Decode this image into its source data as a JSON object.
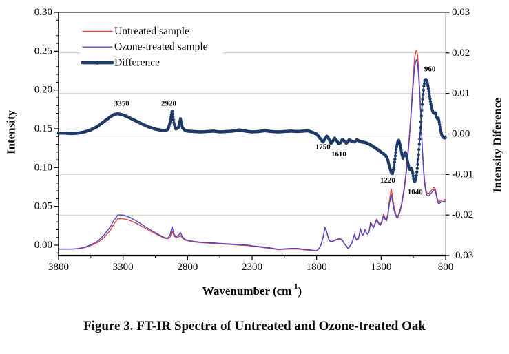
{
  "figure": {
    "caption": "Figure 3. FT-IR Spectra of Untreated and Ozone-treated Oak"
  },
  "colors": {
    "untreated": "#e04040",
    "ozone_treated": "#4a47cc",
    "difference": "#1f3a68",
    "gridline": "#c9c9c9",
    "axis": "#000000",
    "right_axis_line": "#999999"
  },
  "chart_data": {
    "type": "line",
    "title": "",
    "grid": "horizontal light-gray lines at right-axis major ticks",
    "x_axis": {
      "label": "Wavenumber (cm⁻¹)",
      "label_parts": {
        "pre": "Wavenumber (cm",
        "sup": "-1",
        "post": ")"
      },
      "tick_labels": [
        "3800",
        "3300",
        "2800",
        "2300",
        "1800",
        "1300",
        "800"
      ],
      "tick_values": [
        3800,
        3300,
        2800,
        2300,
        1800,
        1300,
        800
      ],
      "minor_tick_interval": 250,
      "range": [
        3800,
        800
      ],
      "reversed": true
    },
    "y_left": {
      "label": "Intensity",
      "tick_labels": [
        "0.30",
        "0.25",
        "0.20",
        "0.15",
        "0.10",
        "0.05",
        "0.00"
      ],
      "tick_values": [
        0.3,
        0.25,
        0.2,
        0.15,
        0.1,
        0.05,
        0.0
      ],
      "minor_tick_interval": 0.01,
      "range": [
        0.3,
        -0.013
      ]
    },
    "y_right": {
      "label": "Intensity Diference",
      "tick_labels": [
        "0.03",
        "0.02",
        "0.01",
        "0.00",
        "-0.01",
        "-0.02",
        "-0.03"
      ],
      "tick_values": [
        0.03,
        0.02,
        0.01,
        0.0,
        -0.01,
        -0.02,
        -0.03
      ],
      "range": [
        0.03,
        -0.03
      ],
      "gridline_values": [
        0.02,
        0.01,
        0.0,
        -0.01,
        -0.02
      ]
    },
    "legend": {
      "position": "top-left-inside",
      "items": [
        {
          "label": "Untreated sample",
          "color": "#e04040",
          "line_width": 1.4,
          "marker": false
        },
        {
          "label": "Ozone-treated sample",
          "color": "#4a47cc",
          "line_width": 1.4,
          "marker": false
        },
        {
          "label": "Difference",
          "color": "#1f3a68",
          "line_width": 5,
          "marker": true
        }
      ]
    },
    "annotations": [
      {
        "text": "3350",
        "x": 3310,
        "y": 0.0075,
        "y_axis": "right"
      },
      {
        "text": "2920",
        "x": 2946,
        "y": 0.0075,
        "y_axis": "right"
      },
      {
        "text": "1750",
        "x": 1751,
        "y": -0.0032,
        "y_axis": "right"
      },
      {
        "text": "1610",
        "x": 1628,
        "y": -0.005,
        "y_axis": "right"
      },
      {
        "text": "1220",
        "x": 1249,
        "y": -0.0115,
        "y_axis": "right"
      },
      {
        "text": "1040",
        "x": 1036,
        "y": -0.0144,
        "y_axis": "right"
      },
      {
        "text": "960",
        "x": 922,
        "y": 0.016,
        "y_axis": "right"
      }
    ],
    "x": [
      3800,
      3750,
      3700,
      3650,
      3600,
      3550,
      3500,
      3450,
      3400,
      3370,
      3340,
      3300,
      3250,
      3200,
      3150,
      3100,
      3050,
      3000,
      2970,
      2950,
      2935,
      2920,
      2905,
      2890,
      2870,
      2855,
      2840,
      2820,
      2800,
      2750,
      2700,
      2650,
      2600,
      2550,
      2500,
      2450,
      2400,
      2350,
      2300,
      2250,
      2200,
      2150,
      2100,
      2050,
      2000,
      1950,
      1900,
      1870,
      1840,
      1820,
      1800,
      1780,
      1765,
      1750,
      1735,
      1720,
      1705,
      1690,
      1675,
      1660,
      1645,
      1630,
      1615,
      1600,
      1585,
      1570,
      1558,
      1548,
      1538,
      1528,
      1515,
      1506,
      1497,
      1488,
      1478,
      1468,
      1461,
      1452,
      1443,
      1434,
      1425,
      1414,
      1404,
      1393,
      1382,
      1371,
      1359,
      1346,
      1334,
      1321,
      1308,
      1295,
      1281,
      1269,
      1259,
      1248,
      1236,
      1222,
      1212,
      1203,
      1192,
      1182,
      1172,
      1163,
      1152,
      1142,
      1132,
      1122,
      1112,
      1102,
      1092,
      1082,
      1072,
      1064,
      1056,
      1048,
      1040,
      1032,
      1026,
      1018,
      1010,
      1000,
      990,
      980,
      970,
      962,
      953,
      945,
      935,
      925,
      915,
      905,
      895,
      888,
      880,
      872,
      864,
      856,
      848,
      840,
      830,
      820,
      810,
      800
    ],
    "series": [
      {
        "name": "Untreated sample",
        "axis": "left",
        "color": "#e04040",
        "width": 1.4,
        "y": [
          -0.0051,
          -0.0051,
          -0.0051,
          -0.0046,
          -0.0033,
          -0.0005,
          0.0031,
          0.0095,
          0.0189,
          0.0276,
          0.034,
          0.0342,
          0.032,
          0.0284,
          0.0238,
          0.0192,
          0.0149,
          0.0106,
          0.0086,
          0.0084,
          0.0105,
          0.0181,
          0.0118,
          0.0099,
          0.0107,
          0.0126,
          0.0093,
          0.0066,
          0.0057,
          0.0042,
          0.0033,
          0.0027,
          0.0022,
          0.0018,
          0.0012,
          0.0007,
          0,
          -0.0004,
          -0.0013,
          -0.0023,
          -0.0034,
          -0.0043,
          -0.0058,
          -0.0053,
          -0.0049,
          -0.0048,
          -0.0059,
          -0.0064,
          -0.0068,
          -0.0071,
          -0.0068,
          -0.0038,
          0.0013,
          0.0103,
          0.0234,
          0.0163,
          0.0072,
          0.0047,
          0.0052,
          0.0068,
          0.0073,
          0.0083,
          0.0083,
          0.0063,
          0.0022,
          -0.0008,
          -0.0038,
          -0.0028,
          0.0002,
          0.0023,
          0.0093,
          0.0144,
          0.0093,
          0.0068,
          0.0083,
          0.0144,
          0.0215,
          0.0164,
          0.0134,
          0.0154,
          0.0205,
          0.0164,
          0.0144,
          0.0185,
          0.0296,
          0.0265,
          0.0235,
          0.0286,
          0.0337,
          0.0296,
          0.0266,
          0.0308,
          0.04,
          0.0349,
          0.0329,
          0.0403,
          0.057,
          0.0725,
          0.063,
          0.0525,
          0.0435,
          0.038,
          0.037,
          0.041,
          0.0463,
          0.0533,
          0.0635,
          0.0735,
          0.087,
          0.102,
          0.12,
          0.1405,
          0.163,
          0.183,
          0.204,
          0.225,
          0.241,
          0.249,
          0.251,
          0.2455,
          0.2295,
          0.1985,
          0.1605,
          0.124,
          0.097,
          0.082,
          0.0718,
          0.0675,
          0.0665,
          0.0675,
          0.0695,
          0.0715,
          0.0735,
          0.0745,
          0.0725,
          0.0663,
          0.0593,
          0.0563,
          0.056,
          0.057,
          0.058,
          0.058,
          0.0585,
          0.059
        ]
      },
      {
        "name": "Ozone-treated sample",
        "axis": "left",
        "color": "#4a47cc",
        "width": 1.4,
        "y": [
          -0.0049,
          -0.0049,
          -0.005,
          -0.0044,
          -0.0028,
          0.0005,
          0.0049,
          0.0125,
          0.0231,
          0.0324,
          0.039,
          0.0389,
          0.036,
          0.0316,
          0.0262,
          0.0209,
          0.0161,
          0.0115,
          0.0094,
          0.0096,
          0.0135,
          0.0239,
          0.0143,
          0.0111,
          0.0123,
          0.0164,
          0.0108,
          0.0075,
          0.0064,
          0.0048,
          0.0038,
          0.0033,
          0.0029,
          0.0023,
          0.0018,
          0.0014,
          0.001,
          0.0004,
          -0.0008,
          -0.0017,
          -0.0026,
          -0.0037,
          -0.0053,
          -0.0047,
          -0.0042,
          -0.0042,
          -0.0052,
          -0.0056,
          -0.0063,
          -0.0069,
          -0.0072,
          -0.0042,
          0.0008,
          0.0097,
          0.0226,
          0.0158,
          0.0068,
          0.0043,
          0.0048,
          0.0063,
          0.0068,
          0.0077,
          0.0077,
          0.0058,
          0.0018,
          -0.0012,
          -0.0042,
          -0.0032,
          -0.0002,
          0.0018,
          0.0087,
          0.0136,
          0.0087,
          0.0063,
          0.0077,
          0.0136,
          0.0205,
          0.0156,
          0.0127,
          0.0146,
          0.0195,
          0.0156,
          0.0136,
          0.0176,
          0.0284,
          0.0255,
          0.0225,
          0.0274,
          0.0323,
          0.0284,
          0.0254,
          0.0293,
          0.038,
          0.0331,
          0.0311,
          0.0378,
          0.053,
          0.0655,
          0.057,
          0.0475,
          0.0405,
          0.036,
          0.035,
          0.039,
          0.0438,
          0.0508,
          0.0605,
          0.0705,
          0.083,
          0.098,
          0.116,
          0.1355,
          0.157,
          0.177,
          0.196,
          0.215,
          0.229,
          0.237,
          0.239,
          0.2345,
          0.2205,
          0.1915,
          0.1555,
          0.12,
          0.093,
          0.078,
          0.0683,
          0.0645,
          0.0635,
          0.0645,
          0.0665,
          0.0685,
          0.0705,
          0.0715,
          0.0695,
          0.0638,
          0.0568,
          0.0538,
          0.054,
          0.055,
          0.056,
          0.056,
          0.0565,
          0.057
        ]
      },
      {
        "name": "Difference",
        "axis": "right",
        "color": "#1f3a68",
        "width": 4.5,
        "style": "thick-dotted",
        "y": [
          0.0002,
          0.0002,
          0.0001,
          0.0002,
          0.0005,
          0.001,
          0.0018,
          0.003,
          0.0042,
          0.0048,
          0.005,
          0.0047,
          0.004,
          0.0032,
          0.0024,
          0.0017,
          0.0012,
          0.0009,
          0.0008,
          0.0012,
          0.003,
          0.0058,
          0.0025,
          0.0012,
          0.0016,
          0.0038,
          0.0015,
          0.0009,
          0.0007,
          0.0006,
          0.0005,
          0.0006,
          0.0007,
          0.0005,
          0.0006,
          0.0007,
          0.001,
          0.0007,
          0.0005,
          0.0006,
          0.0008,
          0.0006,
          0.0005,
          0.0006,
          0.0007,
          0.0006,
          0.0007,
          0.0008,
          0.0005,
          0.0002,
          0,
          -0.0008,
          -0.0015,
          -0.002,
          -0.0012,
          -0.0005,
          -0.0012,
          -0.0024,
          -0.0018,
          -0.001,
          -0.0016,
          -0.0024,
          -0.0022,
          -0.0013,
          -0.0018,
          -0.0023,
          -0.0019,
          -0.0014,
          -0.0016,
          -0.0018,
          -0.0019,
          -0.002,
          -0.0017,
          -0.0014,
          -0.0016,
          -0.0018,
          -0.0019,
          -0.002,
          -0.002,
          -0.0021,
          -0.0021,
          -0.0022,
          -0.0024,
          -0.0025,
          -0.0027,
          -0.0029,
          -0.0032,
          -0.0034,
          -0.0037,
          -0.004,
          -0.0043,
          -0.0046,
          -0.0049,
          -0.0052,
          -0.0056,
          -0.0065,
          -0.008,
          -0.0095,
          -0.0098,
          -0.0085,
          -0.006,
          -0.0035,
          -0.002,
          -0.0015,
          -0.0028,
          -0.0045,
          -0.006,
          -0.0052,
          -0.0045,
          -0.0056,
          -0.0072,
          -0.0086,
          -0.0089,
          -0.0084,
          -0.0095,
          -0.0112,
          -0.0118,
          -0.0112,
          -0.0102,
          -0.008,
          -0.005,
          -0.001,
          0.0035,
          0.008,
          0.0115,
          0.0132,
          0.0135,
          0.013,
          0.0115,
          0.0095,
          0.0075,
          0.006,
          0.0052,
          0.0051,
          0.0053,
          0.0042,
          0.0038,
          0.0039,
          0.0025,
          0.001,
          -0.0003,
          -0.0008,
          -0.001,
          -0.0009
        ]
      }
    ]
  }
}
